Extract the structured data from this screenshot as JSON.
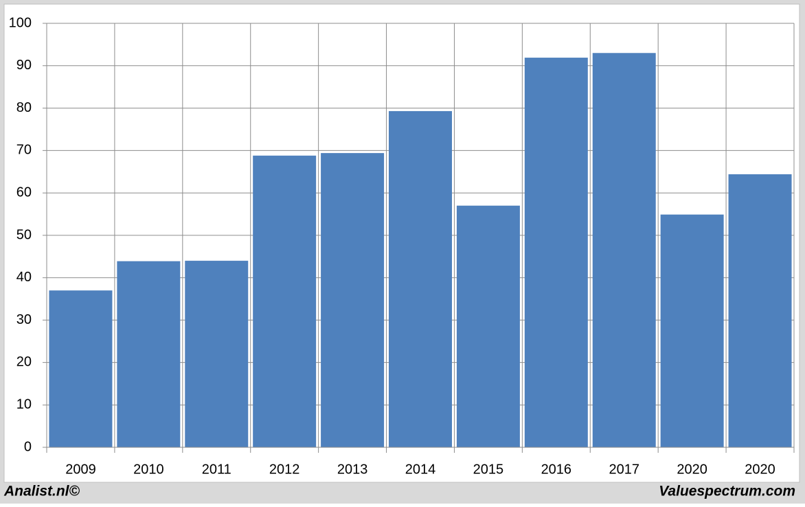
{
  "chart_data": {
    "type": "bar",
    "categories": [
      "2009",
      "2010",
      "2011",
      "2012",
      "2013",
      "2014",
      "2015",
      "2016",
      "2017",
      "2020",
      "2020"
    ],
    "values": [
      37,
      43.9,
      44,
      68.8,
      69.4,
      79.3,
      57,
      91.9,
      93,
      54.9,
      64.4
    ],
    "color": "#4f81bd",
    "ylim": [
      0,
      100
    ],
    "yticks": [
      0,
      10,
      20,
      30,
      40,
      50,
      60,
      70,
      80,
      90,
      100
    ],
    "grid": true,
    "credits": [
      "Analist.nl©",
      "Valuespectrum.com"
    ]
  }
}
